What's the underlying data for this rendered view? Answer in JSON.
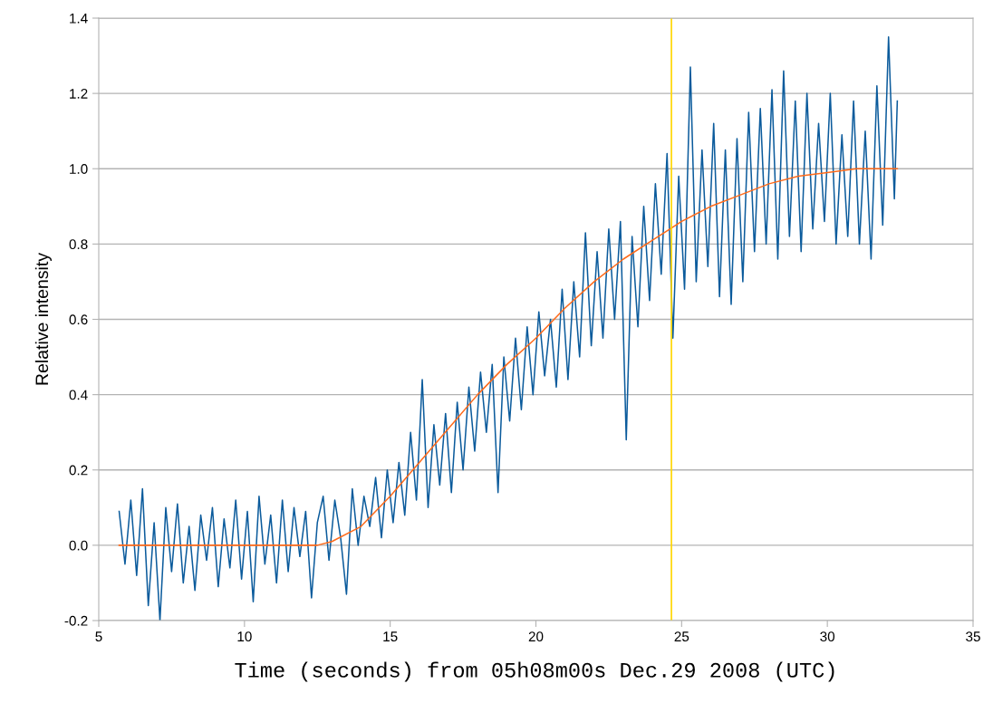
{
  "chart_data": {
    "type": "line",
    "xlabel": "Time (seconds) from 05h08m00s Dec.29 2008 (UTC)",
    "ylabel": "Relative intensity",
    "xlim": [
      5,
      35
    ],
    "xticks": [
      5,
      10,
      15,
      20,
      25,
      30,
      35
    ],
    "ylim": [
      -0.2,
      1.4
    ],
    "yticks": [
      {
        "value": -0.2,
        "label": "-0.2"
      },
      {
        "value": 0,
        "label": "0.0"
      },
      0.2,
      0.4,
      0.6,
      0.8,
      {
        "value": 1,
        "label": "1.0"
      },
      1.2,
      1.4
    ],
    "grid": "y",
    "marker": "none",
    "line_style": "solid",
    "series": [
      {
        "color": "#0b5b9c",
        "x": [
          5.7,
          5.9,
          6.1,
          6.3,
          6.5,
          6.7,
          6.9,
          7.1,
          7.3,
          7.5,
          7.7,
          7.9,
          8.1,
          8.3,
          8.5,
          8.7,
          8.9,
          9.1,
          9.3,
          9.5,
          9.7,
          9.9,
          10.1,
          10.3,
          10.5,
          10.7,
          10.9,
          11.1,
          11.3,
          11.5,
          11.7,
          11.9,
          12.1,
          12.3,
          12.5,
          12.7,
          12.9,
          13.1,
          13.3,
          13.5,
          13.7,
          13.9,
          14.1,
          14.3,
          14.5,
          14.7,
          14.9,
          15.1,
          15.3,
          15.5,
          15.7,
          15.9,
          16.1,
          16.3,
          16.5,
          16.7,
          16.9,
          17.1,
          17.3,
          17.5,
          17.7,
          17.9,
          18.1,
          18.3,
          18.5,
          18.7,
          18.9,
          19.1,
          19.3,
          19.5,
          19.7,
          19.9,
          20.1,
          20.3,
          20.5,
          20.7,
          20.9,
          21.1,
          21.3,
          21.5,
          21.7,
          21.9,
          22.1,
          22.3,
          22.5,
          22.7,
          22.9,
          23.1,
          23.3,
          23.5,
          23.7,
          23.9,
          24.1,
          24.3,
          24.5,
          24.7,
          24.9,
          25.1,
          25.3,
          25.5,
          25.7,
          25.9,
          26.1,
          26.3,
          26.5,
          26.7,
          26.9,
          27.1,
          27.3,
          27.5,
          27.7,
          27.9,
          28.1,
          28.3,
          28.5,
          28.7,
          28.9,
          29.1,
          29.3,
          29.5,
          29.7,
          29.9,
          30.1,
          30.3,
          30.5,
          30.7,
          30.9,
          31.1,
          31.3,
          31.5,
          31.7,
          31.9,
          32.1,
          32.3,
          32.4
        ],
        "values": [
          0.09,
          -0.05,
          0.12,
          -0.08,
          0.15,
          -0.16,
          0.06,
          -0.2,
          0.1,
          -0.07,
          0.11,
          -0.1,
          0.05,
          -0.12,
          0.08,
          -0.04,
          0.1,
          -0.11,
          0.07,
          -0.06,
          0.12,
          -0.09,
          0.09,
          -0.15,
          0.13,
          -0.05,
          0.08,
          -0.1,
          0.12,
          -0.07,
          0.1,
          -0.03,
          0.09,
          -0.14,
          0.06,
          0.13,
          -0.04,
          0.12,
          0.02,
          -0.13,
          0.15,
          0.0,
          0.13,
          0.05,
          0.18,
          0.02,
          0.2,
          0.06,
          0.22,
          0.08,
          0.3,
          0.12,
          0.44,
          0.1,
          0.32,
          0.16,
          0.35,
          0.14,
          0.38,
          0.2,
          0.42,
          0.25,
          0.46,
          0.3,
          0.48,
          0.14,
          0.5,
          0.33,
          0.55,
          0.36,
          0.58,
          0.4,
          0.62,
          0.45,
          0.6,
          0.42,
          0.68,
          0.44,
          0.7,
          0.5,
          0.83,
          0.53,
          0.78,
          0.55,
          0.84,
          0.6,
          0.86,
          0.28,
          0.82,
          0.58,
          0.9,
          0.65,
          0.96,
          0.72,
          1.04,
          0.55,
          0.98,
          0.68,
          1.27,
          0.7,
          1.05,
          0.74,
          1.12,
          0.66,
          1.05,
          0.64,
          1.08,
          0.7,
          1.15,
          0.78,
          1.16,
          0.8,
          1.21,
          0.76,
          1.26,
          0.82,
          1.18,
          0.78,
          1.2,
          0.84,
          1.12,
          0.86,
          1.2,
          0.8,
          1.09,
          0.82,
          1.18,
          0.8,
          1.1,
          0.76,
          1.22,
          0.85,
          1.35,
          0.92,
          1.18
        ]
      },
      {
        "color": "#ff6a1a",
        "x": [
          5.7,
          12.5,
          13,
          14,
          15,
          16,
          17,
          18,
          19,
          20,
          21,
          22,
          23,
          24,
          25,
          26,
          27,
          28,
          29,
          30,
          31,
          32.4
        ],
        "values": [
          0,
          0,
          0.01,
          0.05,
          0.13,
          0.22,
          0.31,
          0.4,
          0.48,
          0.55,
          0.63,
          0.7,
          0.76,
          0.81,
          0.86,
          0.9,
          0.93,
          0.96,
          0.98,
          0.99,
          1.0,
          1.0
        ]
      }
    ],
    "ref_lines": [
      {
        "axis": "x",
        "value": 24.65,
        "color": "#ffd700"
      }
    ]
  }
}
